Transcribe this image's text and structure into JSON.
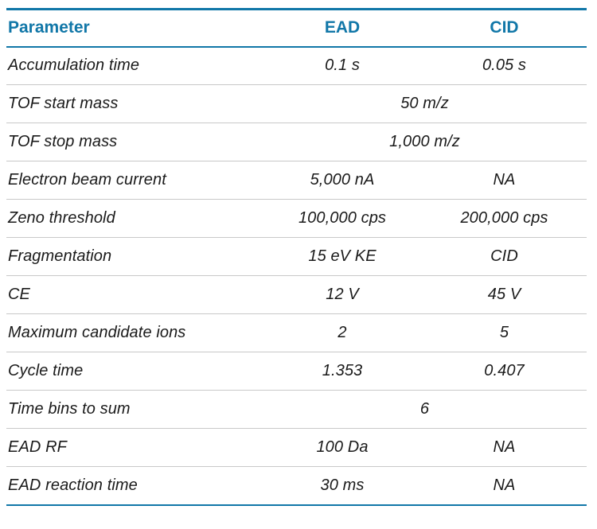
{
  "colors": {
    "accent": "#1177A8",
    "separator": "#C8C8C8",
    "text": "#1A1A1A"
  },
  "table": {
    "columns": [
      "Parameter",
      "EAD",
      "CID"
    ],
    "rows": [
      {
        "parameter": "Accumulation time",
        "ead": "0.1 s",
        "cid": "0.05 s"
      },
      {
        "parameter": "TOF start mass",
        "shared": "50 m/z"
      },
      {
        "parameter": "TOF stop mass",
        "shared": "1,000 m/z"
      },
      {
        "parameter": "Electron beam current",
        "ead": "5,000 nA",
        "cid": "NA"
      },
      {
        "parameter": "Zeno threshold",
        "ead": "100,000 cps",
        "cid": "200,000 cps"
      },
      {
        "parameter": "Fragmentation",
        "ead": "15 eV KE",
        "cid": "CID"
      },
      {
        "parameter": "CE",
        "ead": "12 V",
        "cid": "45 V"
      },
      {
        "parameter": "Maximum candidate ions",
        "ead": "2",
        "cid": "5"
      },
      {
        "parameter": "Cycle time",
        "ead": "1.353",
        "cid": "0.407"
      },
      {
        "parameter": "Time bins to sum",
        "shared": "6"
      },
      {
        "parameter": "EAD RF",
        "ead": "100 Da",
        "cid": "NA"
      },
      {
        "parameter": "EAD reaction time",
        "ead": "30 ms",
        "cid": "NA"
      }
    ]
  }
}
